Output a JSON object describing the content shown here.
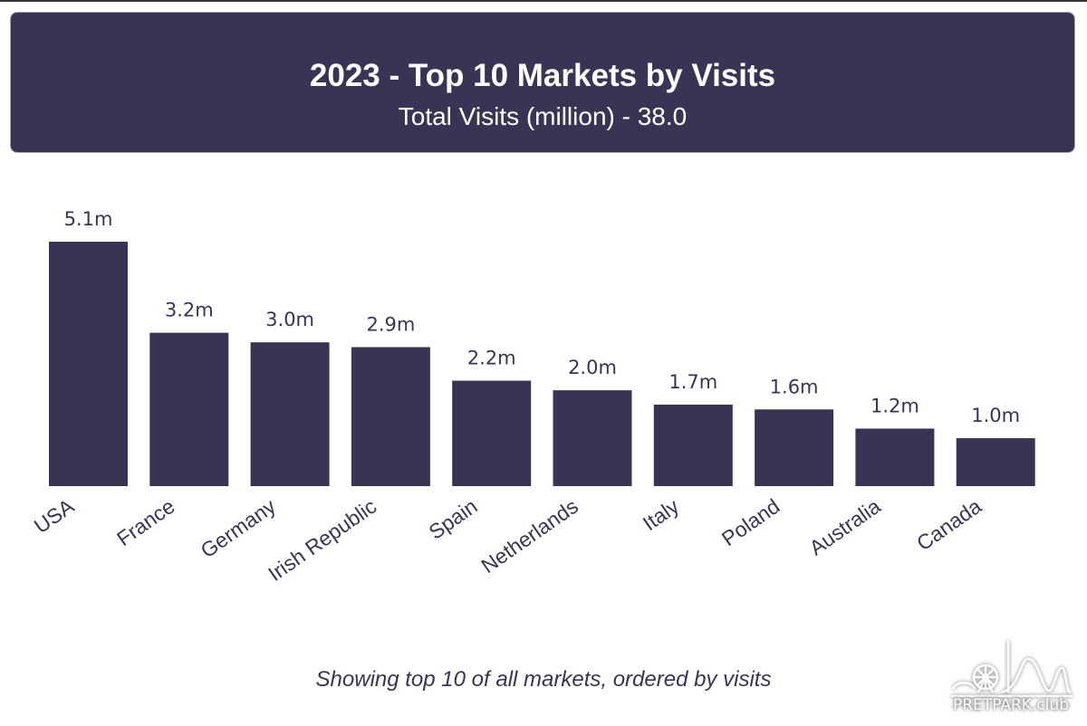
{
  "header": {
    "title": "2023 - Top 10 Markets by Visits",
    "subtitle": "Total Visits (million) - 38.0"
  },
  "footnote": "Showing top 10 of all markets, ordered by visits",
  "logo": {
    "text": "PRETPARK.club"
  },
  "colors": {
    "bar": "#3a3454",
    "header_bg": "#3a3454",
    "text": "#3a3454"
  },
  "chart_data": {
    "type": "bar",
    "title": "2023 - Top 10 Markets by Visits",
    "subtitle": "Total Visits (million) - 38.0",
    "xlabel": "",
    "ylabel": "",
    "ylim": [
      0,
      5.1
    ],
    "grid": false,
    "categories": [
      "USA",
      "France",
      "Germany",
      "Irish Republic",
      "Spain",
      "Netherlands",
      "Italy",
      "Poland",
      "Australia",
      "Canada"
    ],
    "values": [
      5.1,
      3.2,
      3.0,
      2.9,
      2.2,
      2.0,
      1.7,
      1.6,
      1.2,
      1.0
    ],
    "labels": [
      "5.1m",
      "3.2m",
      "3.0m",
      "2.9m",
      "2.2m",
      "2.0m",
      "1.7m",
      "1.6m",
      "1.2m",
      "1.0m"
    ]
  }
}
